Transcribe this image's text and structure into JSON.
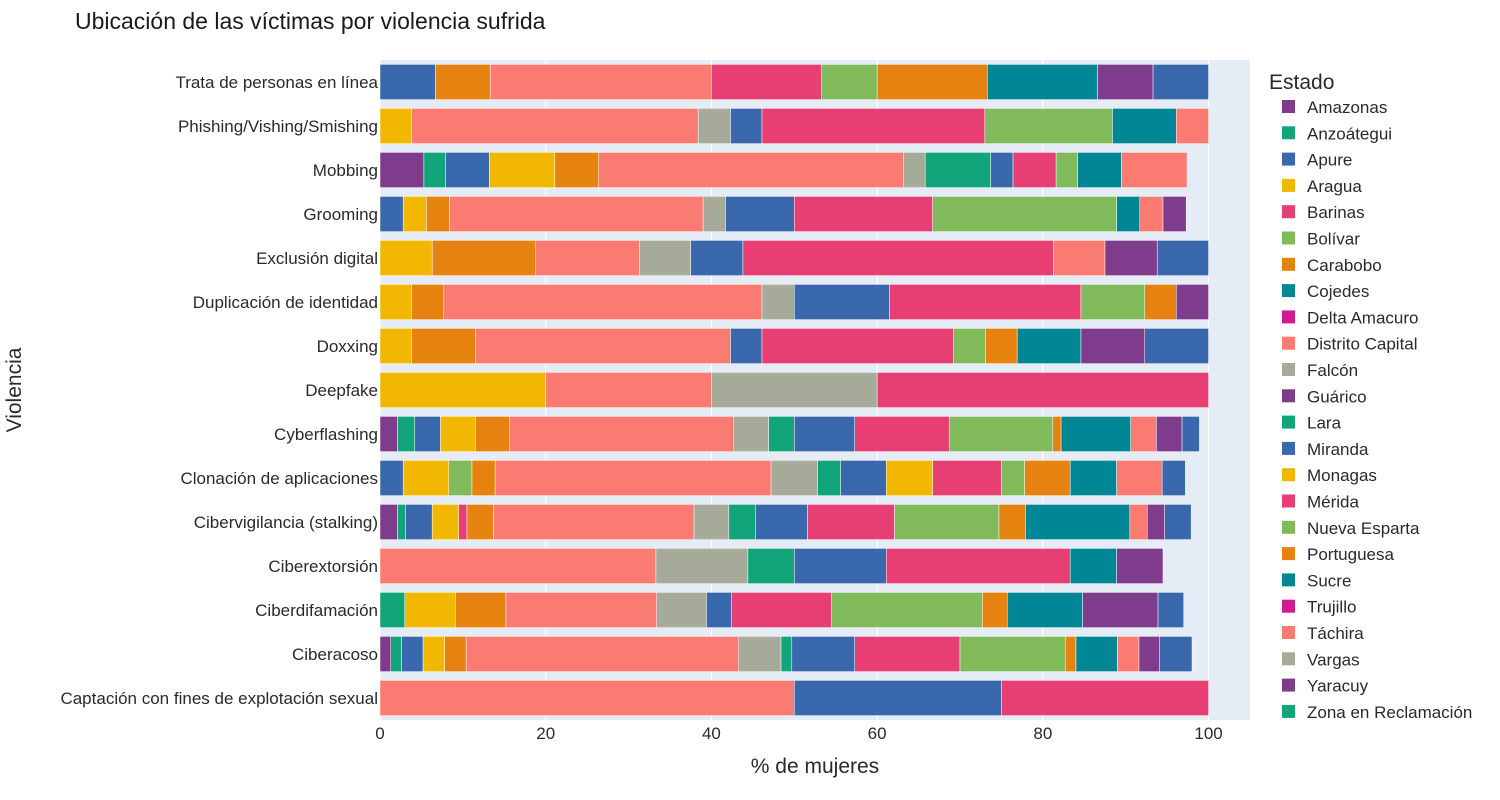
{
  "chart_data": {
    "type": "bar",
    "orientation": "horizontal",
    "stacked": true,
    "title": "Ubicación de las víctimas por violencia sufrida",
    "xlabel": "% de mujeres",
    "ylabel": "Violencia",
    "xlim": [
      0,
      105
    ],
    "xticks": [
      0,
      20,
      40,
      60,
      80,
      100
    ],
    "grid": true,
    "legend_title": "Estado",
    "legend_position": "right",
    "categories": [
      "Trata de personas en línea",
      "Phishing/Vishing/Smishing",
      "Mobbing",
      "Grooming",
      "Exclusión digital",
      "Duplicación de identidad",
      "Doxxing",
      "Deepfake",
      "Cyberflashing",
      "Clonación de aplicaciones",
      "Cibervigilancia (stalking)",
      "Ciberextorsión",
      "Ciberdifamación",
      "Ciberacoso",
      "Captación con fines de explotación sexual"
    ],
    "legend": [
      {
        "name": "Amazonas",
        "color": "#7f3c8d"
      },
      {
        "name": "Anzoátegui",
        "color": "#11a579"
      },
      {
        "name": "Apure",
        "color": "#3969ac"
      },
      {
        "name": "Aragua",
        "color": "#f2b701"
      },
      {
        "name": "Barinas",
        "color": "#e73f74"
      },
      {
        "name": "Bolívar",
        "color": "#80ba5a"
      },
      {
        "name": "Carabobo",
        "color": "#e68310"
      },
      {
        "name": "Cojedes",
        "color": "#008695"
      },
      {
        "name": "Delta Amacuro",
        "color": "#cf1c90"
      },
      {
        "name": "Distrito Capital",
        "color": "#f97b72"
      },
      {
        "name": "Falcón",
        "color": "#a5aa99"
      },
      {
        "name": "Guárico",
        "color": "#7f3c8d"
      },
      {
        "name": "Lara",
        "color": "#11a579"
      },
      {
        "name": "Miranda",
        "color": "#3969ac"
      },
      {
        "name": "Monagas",
        "color": "#f2b701"
      },
      {
        "name": "Mérida",
        "color": "#e73f74"
      },
      {
        "name": "Nueva Esparta",
        "color": "#80ba5a"
      },
      {
        "name": "Portuguesa",
        "color": "#e68310"
      },
      {
        "name": "Sucre",
        "color": "#008695"
      },
      {
        "name": "Trujillo",
        "color": "#cf1c90"
      },
      {
        "name": "Táchira",
        "color": "#f97b72"
      },
      {
        "name": "Vargas",
        "color": "#a5aa99"
      },
      {
        "name": "Yaracuy",
        "color": "#7f3c8d"
      },
      {
        "name": "Zona en Reclamación",
        "color": "#11a579"
      }
    ],
    "bars": [
      {
        "category": "Trata de personas en línea",
        "segments": [
          {
            "state": "Miranda",
            "value": 6.7
          },
          {
            "state": "Carabobo",
            "value": 6.6
          },
          {
            "state": "Distrito Capital",
            "value": 26.7
          },
          {
            "state": "Mérida",
            "value": 13.3
          },
          {
            "state": "Nueva Esparta",
            "value": 6.7
          },
          {
            "state": "Portuguesa",
            "value": 13.3
          },
          {
            "state": "Sucre",
            "value": 13.3
          },
          {
            "state": "Yaracuy",
            "value": 6.7
          },
          {
            "state": "Miranda",
            "value": 6.7
          }
        ]
      },
      {
        "category": "Phishing/Vishing/Smishing",
        "segments": [
          {
            "state": "Aragua",
            "value": 3.8
          },
          {
            "state": "Distrito Capital",
            "value": 34.6
          },
          {
            "state": "Falcón",
            "value": 3.9
          },
          {
            "state": "Miranda",
            "value": 3.8
          },
          {
            "state": "Mérida",
            "value": 26.9
          },
          {
            "state": "Nueva Esparta",
            "value": 15.4
          },
          {
            "state": "Sucre",
            "value": 7.7
          },
          {
            "state": "Táchira",
            "value": 3.9
          }
        ]
      },
      {
        "category": "Mobbing",
        "segments": [
          {
            "state": "Amazonas",
            "value": 5.3
          },
          {
            "state": "Anzoátegui",
            "value": 2.6
          },
          {
            "state": "Apure",
            "value": 5.3
          },
          {
            "state": "Aragua",
            "value": 7.9
          },
          {
            "state": "Carabobo",
            "value": 5.3
          },
          {
            "state": "Distrito Capital",
            "value": 36.8
          },
          {
            "state": "Falcón",
            "value": 2.6
          },
          {
            "state": "Lara",
            "value": 7.9
          },
          {
            "state": "Miranda",
            "value": 2.7
          },
          {
            "state": "Mérida",
            "value": 5.2
          },
          {
            "state": "Nueva Esparta",
            "value": 2.6
          },
          {
            "state": "Sucre",
            "value": 5.3
          },
          {
            "state": "Táchira",
            "value": 7.9
          }
        ]
      },
      {
        "category": "Grooming",
        "segments": [
          {
            "state": "Apure",
            "value": 2.8
          },
          {
            "state": "Aragua",
            "value": 2.8
          },
          {
            "state": "Carabobo",
            "value": 2.8
          },
          {
            "state": "Distrito Capital",
            "value": 30.6
          },
          {
            "state": "Falcón",
            "value": 2.7
          },
          {
            "state": "Miranda",
            "value": 8.3
          },
          {
            "state": "Mérida",
            "value": 16.7
          },
          {
            "state": "Nueva Esparta",
            "value": 22.2
          },
          {
            "state": "Sucre",
            "value": 2.8
          },
          {
            "state": "Táchira",
            "value": 2.8
          },
          {
            "state": "Yaracuy",
            "value": 2.8
          }
        ]
      },
      {
        "category": "Exclusión digital",
        "segments": [
          {
            "state": "Aragua",
            "value": 6.3
          },
          {
            "state": "Carabobo",
            "value": 12.5
          },
          {
            "state": "Distrito Capital",
            "value": 12.5
          },
          {
            "state": "Falcón",
            "value": 6.2
          },
          {
            "state": "Miranda",
            "value": 6.3
          },
          {
            "state": "Mérida",
            "value": 37.5
          },
          {
            "state": "Táchira",
            "value": 6.2
          },
          {
            "state": "Yaracuy",
            "value": 6.3
          },
          {
            "state": "Miranda",
            "value": 6.2
          }
        ]
      },
      {
        "category": "Duplicación de identidad",
        "segments": [
          {
            "state": "Aragua",
            "value": 3.8
          },
          {
            "state": "Carabobo",
            "value": 3.9
          },
          {
            "state": "Distrito Capital",
            "value": 38.4
          },
          {
            "state": "Falcón",
            "value": 3.9
          },
          {
            "state": "Miranda",
            "value": 11.5
          },
          {
            "state": "Mérida",
            "value": 23.1
          },
          {
            "state": "Nueva Esparta",
            "value": 7.7
          },
          {
            "state": "Portuguesa",
            "value": 3.8
          },
          {
            "state": "Yaracuy",
            "value": 3.9
          }
        ]
      },
      {
        "category": "Doxxing",
        "segments": [
          {
            "state": "Aragua",
            "value": 3.8
          },
          {
            "state": "Carabobo",
            "value": 7.7
          },
          {
            "state": "Distrito Capital",
            "value": 30.8
          },
          {
            "state": "Miranda",
            "value": 3.8
          },
          {
            "state": "Mérida",
            "value": 23.1
          },
          {
            "state": "Nueva Esparta",
            "value": 3.9
          },
          {
            "state": "Portuguesa",
            "value": 3.8
          },
          {
            "state": "Sucre",
            "value": 7.7
          },
          {
            "state": "Yaracuy",
            "value": 7.7
          },
          {
            "state": "Miranda",
            "value": 7.7
          }
        ]
      },
      {
        "category": "Deepfake",
        "segments": [
          {
            "state": "Aragua",
            "value": 20
          },
          {
            "state": "Distrito Capital",
            "value": 20
          },
          {
            "state": "Falcón",
            "value": 20
          },
          {
            "state": "Mérida",
            "value": 40
          }
        ]
      },
      {
        "category": "Cyberflashing",
        "segments": [
          {
            "state": "Amazonas",
            "value": 2.1
          },
          {
            "state": "Anzoátegui",
            "value": 2.1
          },
          {
            "state": "Apure",
            "value": 3.1
          },
          {
            "state": "Aragua",
            "value": 4.2
          },
          {
            "state": "Carabobo",
            "value": 4.1
          },
          {
            "state": "Distrito Capital",
            "value": 27.1
          },
          {
            "state": "Falcón",
            "value": 4.2
          },
          {
            "state": "Lara",
            "value": 3.1
          },
          {
            "state": "Miranda",
            "value": 7.3
          },
          {
            "state": "Mérida",
            "value": 11.4
          },
          {
            "state": "Nueva Esparta",
            "value": 12.5
          },
          {
            "state": "Portuguesa",
            "value": 1
          },
          {
            "state": "Sucre",
            "value": 8.4
          },
          {
            "state": "Táchira",
            "value": 3.1
          },
          {
            "state": "Yaracuy",
            "value": 3.1
          },
          {
            "state": "Miranda",
            "value": 2.1
          }
        ]
      },
      {
        "category": "Clonación de aplicaciones",
        "segments": [
          {
            "state": "Apure",
            "value": 2.8
          },
          {
            "state": "Aragua",
            "value": 5.5
          },
          {
            "state": "Bolívar",
            "value": 2.8
          },
          {
            "state": "Carabobo",
            "value": 2.8
          },
          {
            "state": "Distrito Capital",
            "value": 33.3
          },
          {
            "state": "Falcón",
            "value": 5.6
          },
          {
            "state": "Lara",
            "value": 2.8
          },
          {
            "state": "Miranda",
            "value": 5.5
          },
          {
            "state": "Monagas",
            "value": 5.6
          },
          {
            "state": "Mérida",
            "value": 8.3
          },
          {
            "state": "Nueva Esparta",
            "value": 2.8
          },
          {
            "state": "Portuguesa",
            "value": 5.5
          },
          {
            "state": "Sucre",
            "value": 5.6
          },
          {
            "state": "Táchira",
            "value": 5.5
          },
          {
            "state": "Miranda",
            "value": 2.8
          }
        ]
      },
      {
        "category": "Cibervigilancia (stalking)",
        "segments": [
          {
            "state": "Amazonas",
            "value": 2.1
          },
          {
            "state": "Anzoátegui",
            "value": 1
          },
          {
            "state": "Apure",
            "value": 3.2
          },
          {
            "state": "Aragua",
            "value": 3.2
          },
          {
            "state": "Barinas",
            "value": 1
          },
          {
            "state": "Carabobo",
            "value": 3.2
          },
          {
            "state": "Distrito Capital",
            "value": 24.2
          },
          {
            "state": "Falcón",
            "value": 4.2
          },
          {
            "state": "Lara",
            "value": 3.2
          },
          {
            "state": "Miranda",
            "value": 6.3
          },
          {
            "state": "Mérida",
            "value": 10.5
          },
          {
            "state": "Nueva Esparta",
            "value": 12.6
          },
          {
            "state": "Portuguesa",
            "value": 3.2
          },
          {
            "state": "Sucre",
            "value": 12.6
          },
          {
            "state": "Táchira",
            "value": 2.1
          },
          {
            "state": "Yaracuy",
            "value": 2.1
          },
          {
            "state": "Miranda",
            "value": 3.2
          }
        ]
      },
      {
        "category": "Ciberextorsión",
        "segments": [
          {
            "state": "Distrito Capital",
            "value": 33.3
          },
          {
            "state": "Falcón",
            "value": 11.1
          },
          {
            "state": "Lara",
            "value": 5.6
          },
          {
            "state": "Miranda",
            "value": 11.1
          },
          {
            "state": "Mérida",
            "value": 22.2
          },
          {
            "state": "Sucre",
            "value": 5.6
          },
          {
            "state": "Yaracuy",
            "value": 5.6
          }
        ]
      },
      {
        "category": "Ciberdifamación",
        "segments": [
          {
            "state": "Anzoátegui",
            "value": 3
          },
          {
            "state": "Aragua",
            "value": 6.1
          },
          {
            "state": "Carabobo",
            "value": 6.1
          },
          {
            "state": "Distrito Capital",
            "value": 18.2
          },
          {
            "state": "Falcón",
            "value": 6
          },
          {
            "state": "Miranda",
            "value": 3
          },
          {
            "state": "Mérida",
            "value": 12.1
          },
          {
            "state": "Nueva Esparta",
            "value": 18.2
          },
          {
            "state": "Portuguesa",
            "value": 3
          },
          {
            "state": "Sucre",
            "value": 9.1
          },
          {
            "state": "Yaracuy",
            "value": 9.1
          },
          {
            "state": "Miranda",
            "value": 3.1
          }
        ]
      },
      {
        "category": "Ciberacoso",
        "segments": [
          {
            "state": "Amazonas",
            "value": 1.3
          },
          {
            "state": "Anzoátegui",
            "value": 1.3
          },
          {
            "state": "Apure",
            "value": 2.6
          },
          {
            "state": "Aragua",
            "value": 2.6
          },
          {
            "state": "Carabobo",
            "value": 2.6
          },
          {
            "state": "Distrito Capital",
            "value": 32.9
          },
          {
            "state": "Falcón",
            "value": 5.1
          },
          {
            "state": "Lara",
            "value": 1.3
          },
          {
            "state": "Miranda",
            "value": 7.6
          },
          {
            "state": "Mérida",
            "value": 12.7
          },
          {
            "state": "Nueva Esparta",
            "value": 12.7
          },
          {
            "state": "Portuguesa",
            "value": 1.3
          },
          {
            "state": "Sucre",
            "value": 5
          },
          {
            "state": "Táchira",
            "value": 2.6
          },
          {
            "state": "Yaracuy",
            "value": 2.5
          },
          {
            "state": "Miranda",
            "value": 3.9
          }
        ]
      },
      {
        "category": "Captación con fines de explotación sexual",
        "segments": [
          {
            "state": "Distrito Capital",
            "value": 50
          },
          {
            "state": "Miranda",
            "value": 25
          },
          {
            "state": "Mérida",
            "value": 25
          }
        ]
      }
    ]
  }
}
